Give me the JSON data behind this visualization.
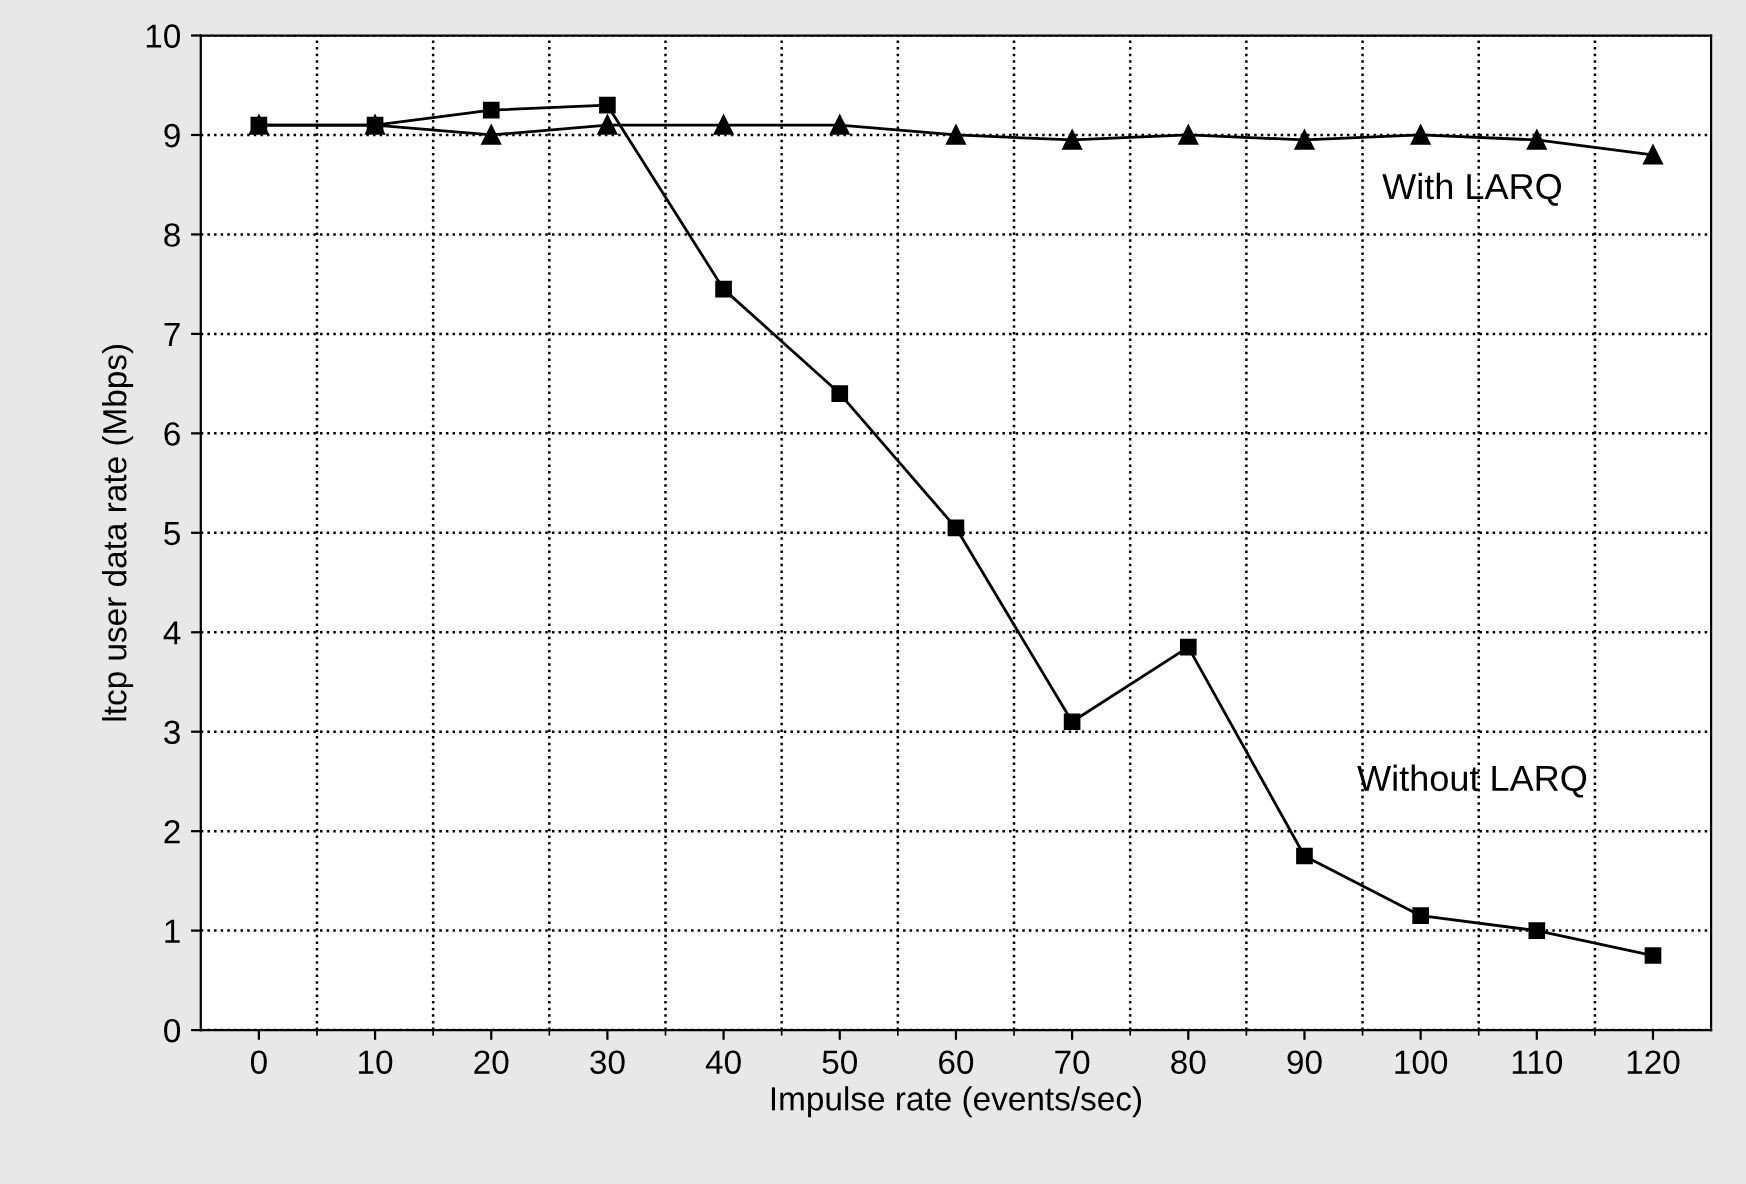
{
  "chart_data": {
    "type": "line",
    "xlabel": "Impulse rate (events/sec)",
    "ylabel": "ltcp user data rate (Mbps)",
    "categories": [
      "0",
      "10",
      "20",
      "30",
      "40",
      "50",
      "60",
      "70",
      "80",
      "90",
      "100",
      "110",
      "120"
    ],
    "series": [
      {
        "color": "#000000",
        "marker": "square",
        "values": [
          9.1,
          9.1,
          9.25,
          9.3,
          7.45,
          6.4,
          5.05,
          3.1,
          3.85,
          1.75,
          1.15,
          1.0,
          0.75
        ]
      },
      {
        "color": "#000000",
        "marker": "triangle",
        "values": [
          9.1,
          9.1,
          9.0,
          9.1,
          9.1,
          9.1,
          9.0,
          8.95,
          9.0,
          8.95,
          9.0,
          8.95,
          8.8
        ]
      }
    ],
    "annotations": [
      "With LARQ",
      "Without LARQ"
    ],
    "ylim": [
      0,
      10
    ],
    "yticks": [
      0,
      1,
      2,
      3,
      4,
      5,
      6,
      7,
      8,
      9,
      10
    ],
    "grid": true,
    "line_style": "solid"
  }
}
